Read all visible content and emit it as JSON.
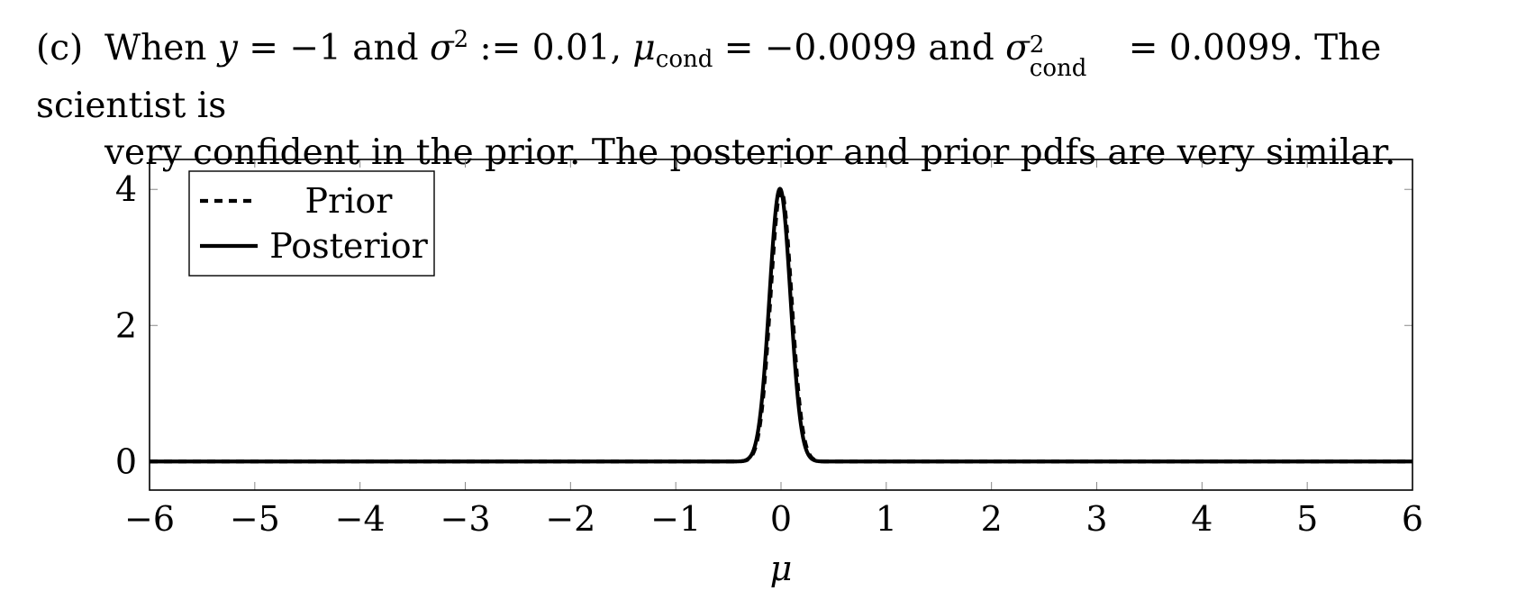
{
  "caption": {
    "label": "(c)",
    "t1": "When",
    "t2": "y",
    "t3": "= −1 and",
    "t4": "σ",
    "t5": "2",
    "t6": ":= 0.01,",
    "t7": "μ",
    "t8": "cond",
    "t9": "= −0.0099 and",
    "t10": "σ",
    "t11": "2",
    "t12": "cond",
    "t13": "= 0.0099. The scientist is",
    "line2": "very confident in the prior. The posterior and prior pdfs are very similar."
  },
  "chart_data": {
    "type": "line",
    "xlabel": "μ",
    "ylabel": "",
    "xlim": [
      -6,
      6
    ],
    "ylim": [
      -0.42,
      4.44
    ],
    "xticks": [
      -6,
      -5,
      -4,
      -3,
      -2,
      -1,
      0,
      1,
      2,
      3,
      4,
      5,
      6
    ],
    "xtick_labels": [
      "−6",
      "−5",
      "−4",
      "−3",
      "−2",
      "−1",
      "0",
      "1",
      "2",
      "3",
      "4",
      "5",
      "6"
    ],
    "yticks": [
      0,
      2,
      4
    ],
    "ytick_labels": [
      "0",
      "2",
      "4"
    ],
    "legend": "top-left",
    "grid": false,
    "series": [
      {
        "name": "Prior",
        "style": "dashed",
        "distribution": "normal",
        "mean": 0,
        "variance": 0.01
      },
      {
        "name": "Posterior",
        "style": "solid",
        "distribution": "normal",
        "mean": -0.0099,
        "variance": 0.0099
      }
    ]
  }
}
